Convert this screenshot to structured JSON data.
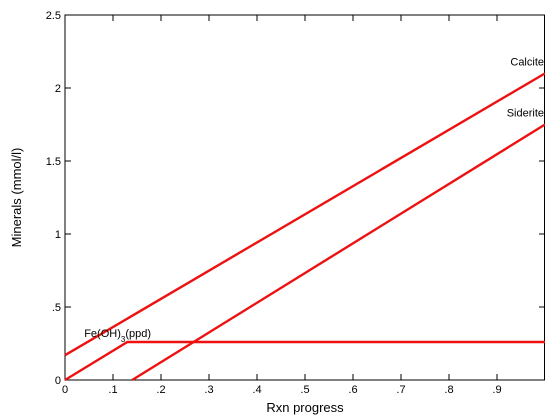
{
  "chart_data": {
    "type": "line",
    "xlabel": "Rxn progress",
    "ylabel": "Minerals (mmol/l)",
    "xlim": [
      0,
      1
    ],
    "ylim": [
      0,
      2.5
    ],
    "xticks": [
      0,
      0.1,
      0.2,
      0.3,
      0.4,
      0.5,
      0.6,
      0.7,
      0.8,
      0.9
    ],
    "xtick_labels": [
      "0",
      ".1",
      ".2",
      ".3",
      ".4",
      ".5",
      ".6",
      ".7",
      ".8",
      ".9"
    ],
    "yticks": [
      0,
      0.5,
      1,
      1.5,
      2,
      2.5
    ],
    "ytick_labels": [
      "0",
      ".5",
      "1",
      "1.5",
      "2",
      "2.5"
    ],
    "grid": false,
    "series_color": "#ee1111",
    "series": [
      {
        "name": "Calcite",
        "x": [
          0,
          1
        ],
        "y": [
          0.17,
          2.1
        ]
      },
      {
        "name": "Siderite",
        "x": [
          0.14,
          1
        ],
        "y": [
          0.0,
          1.75
        ]
      },
      {
        "name": "Fe(OH)3(ppd)",
        "x": [
          0,
          0.13,
          1
        ],
        "y": [
          0.0,
          0.26,
          0.26
        ]
      }
    ],
    "labels": [
      {
        "series": 0,
        "text": "Calcite"
      },
      {
        "series": 1,
        "text": "Siderite"
      },
      {
        "series": 2,
        "text_main": "Fe(OH)",
        "text_sub": "3",
        "text_tail": "(ppd)"
      }
    ]
  }
}
